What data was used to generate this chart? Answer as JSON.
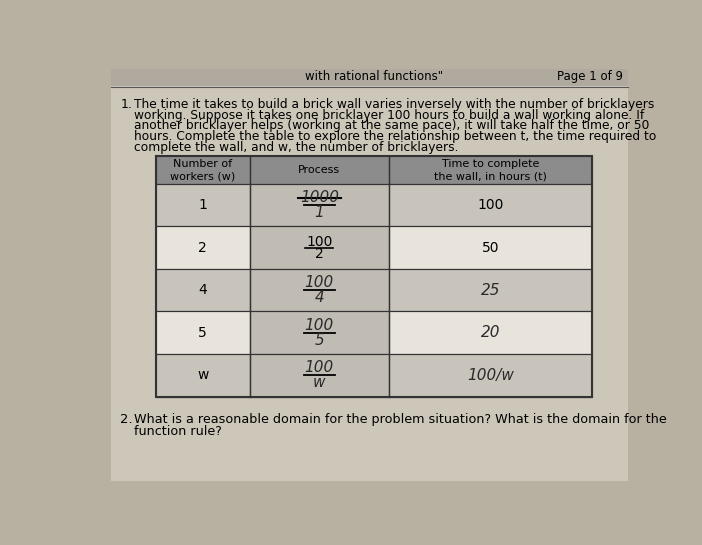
{
  "bg_color": "#b8b0a0",
  "content_bg": "#d8d0c0",
  "page_header": "with rational functions\"",
  "page_number": "Page 1 of 9",
  "q1_label": "1.",
  "q1_text": "The time it takes to build a brick wall varies inversely with the number of bricklayers\nworking. Suppose it takes one bricklayer 100 hours to build a wall working alone. If\nanother bricklayer helps (working at the same pace), it will take half the time, or 50\nhours. Complete the table to explore the relationship between t, the time required to\ncomplete the wall, and w, the number of bricklayers.",
  "q2_label": "2.",
  "q2_text": "What is a reasonable domain for the problem situation? What is the domain for the\nfunction rule?",
  "col_headers": [
    "Number of\nworkers (w)",
    "Process",
    "Time to complete\nthe wall, in hours (t)"
  ],
  "workers": [
    "1",
    "2",
    "4",
    "5",
    "w"
  ],
  "process_nums": [
    "1000",
    "100",
    "100",
    "100",
    "100"
  ],
  "process_denoms": [
    "1",
    "2",
    "4",
    "5",
    "w"
  ],
  "times": [
    "100",
    "50",
    "25",
    "20",
    "100/w"
  ],
  "row0_strikethrough": true,
  "header_bg": "#8c8c8c",
  "row_bg_dark": "#c8c4bc",
  "row_bg_light": "#e8e4dc",
  "process_bg": "#c0bcb4",
  "table_border": "#444444",
  "text_color": "#1a1a1a",
  "handwritten_color": "#2a2a2a"
}
